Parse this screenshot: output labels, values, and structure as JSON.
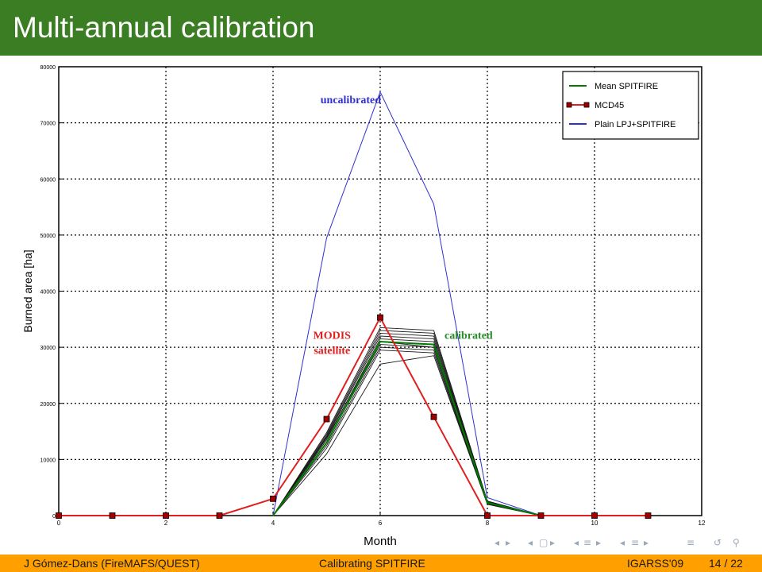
{
  "slide": {
    "title": "Multi-annual calibration",
    "footer": {
      "author": "J Gómez-Dans  (FireMAFS/QUEST)",
      "talk": "Calibrating SPITFIRE",
      "venue": "IGARSS'09",
      "page": "14 / 22"
    },
    "nav_icons": [
      "arrow-left-icon",
      "arrow-right-icon",
      "frame-left-icon",
      "frame-right-icon",
      "subsection-left-icon",
      "subsection-right-icon",
      "section-left-icon",
      "section-right-icon",
      "align-icon",
      "search-undo-icon",
      "search-icon"
    ]
  },
  "chart_data": {
    "type": "line",
    "xlabel": "Month",
    "ylabel": "Burned area [ha]",
    "xlim": [
      0,
      12
    ],
    "ylim": [
      0,
      80000
    ],
    "xticks": [
      0,
      2,
      4,
      6,
      8,
      10,
      12
    ],
    "yticks": [
      0,
      10000,
      20000,
      30000,
      40000,
      50000,
      60000,
      70000,
      80000
    ],
    "grid": true,
    "legend_position": "top-right",
    "colors": {
      "mean": "#007a00",
      "mcd45": "#e02020",
      "plain": "#3030d0",
      "ensemble": "#1a1a1a",
      "title_bar": "#3a7d22",
      "footer": "#ffa000"
    },
    "series": [
      {
        "name": "Mean SPITFIRE",
        "x": [
          4,
          5,
          6,
          7,
          8,
          9
        ],
        "y": [
          0,
          13000,
          31000,
          30500,
          2300,
          0
        ]
      },
      {
        "name": "MCD45",
        "x": [
          0,
          1,
          2,
          3,
          4,
          5,
          6,
          7,
          8,
          9,
          10,
          11
        ],
        "y": [
          0,
          0,
          0,
          0,
          3000,
          17200,
          35300,
          17600,
          0,
          0,
          0,
          0
        ]
      },
      {
        "name": "Plain LPJ+SPITFIRE",
        "x": [
          4,
          5,
          6,
          7,
          8,
          9
        ],
        "y": [
          0,
          49500,
          75500,
          55500,
          3200,
          0
        ]
      }
    ],
    "ensemble": {
      "x": [
        4,
        5,
        6,
        7,
        8,
        9
      ],
      "runs": [
        [
          0,
          11000,
          27000,
          28500,
          2000,
          0
        ],
        [
          0,
          12000,
          29500,
          29000,
          2100,
          0
        ],
        [
          0,
          12500,
          30000,
          29500,
          2200,
          0
        ],
        [
          0,
          13000,
          30500,
          30000,
          2250,
          0
        ],
        [
          0,
          13500,
          31500,
          31000,
          2300,
          0
        ],
        [
          0,
          14000,
          32000,
          31500,
          2400,
          0
        ],
        [
          0,
          14200,
          32500,
          32000,
          2500,
          0
        ],
        [
          0,
          14500,
          33000,
          32500,
          2550,
          0
        ],
        [
          0,
          14800,
          33500,
          33000,
          2600,
          0
        ],
        [
          0,
          13800,
          31000,
          30000,
          2350,
          0
        ]
      ]
    },
    "annotations": [
      {
        "text": "uncalibrated",
        "color": "#3030d0",
        "x": 5.45,
        "y": 73500
      },
      {
        "text": "MODIS",
        "color": "#e02020",
        "x": 5.1,
        "y": 31500
      },
      {
        "text": "satellite",
        "color": "#e02020",
        "x": 5.1,
        "y": 28800
      },
      {
        "text": "calibrated",
        "color": "#2a8a2a",
        "x": 7.65,
        "y": 31500
      }
    ]
  }
}
